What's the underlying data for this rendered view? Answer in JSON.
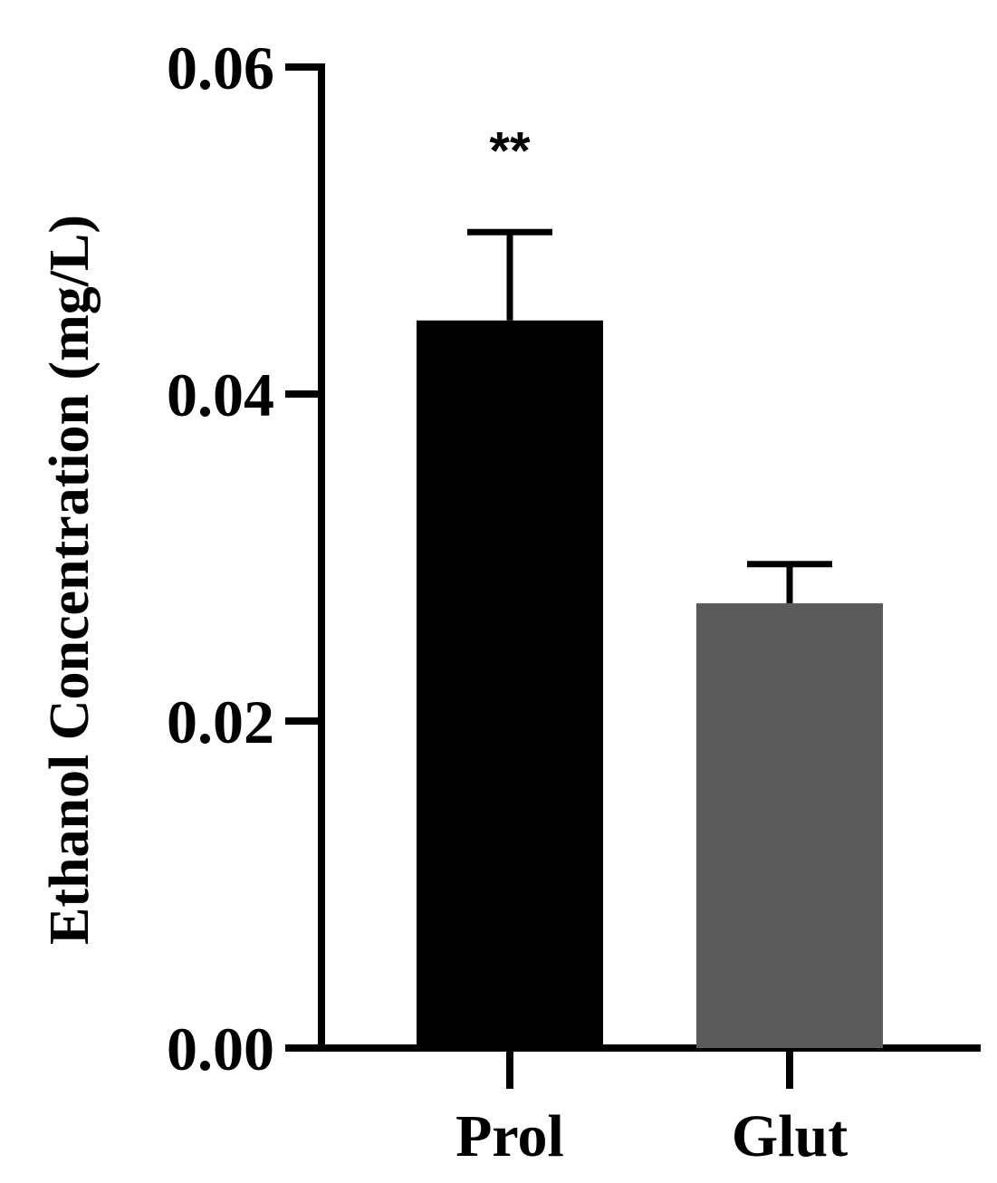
{
  "chart_data": {
    "type": "bar",
    "categories": [
      "Prol",
      "Glut"
    ],
    "values": [
      0.0445,
      0.0272
    ],
    "errors": [
      0.0054,
      0.0024
    ],
    "colors": [
      "#000000",
      "#5a5a5a"
    ],
    "significance": [
      "**",
      ""
    ],
    "ylabel": "Ethanol Concentration (mg/L)",
    "xlabel": "",
    "ylim": [
      0,
      0.06
    ],
    "yticks": [
      0,
      0.02,
      0.04,
      0.06
    ],
    "ytick_labels": [
      "0.00",
      "0.02",
      "0.04",
      "0.06"
    ],
    "grid": false,
    "legend": "none"
  }
}
